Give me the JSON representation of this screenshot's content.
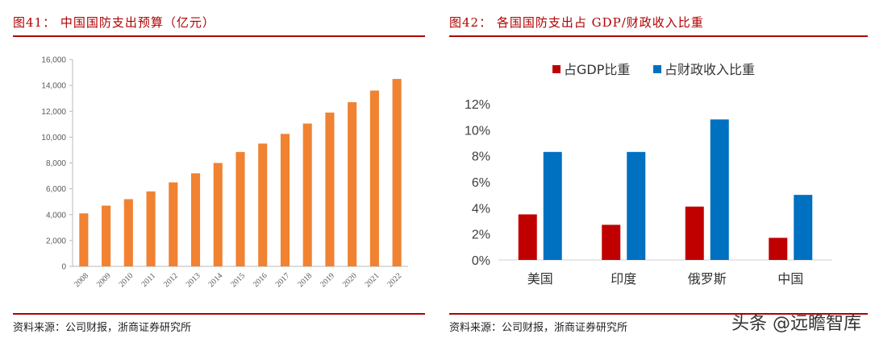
{
  "left_panel": {
    "title": "图41：  中国国防支出预算（亿元）",
    "source": "资料来源：公司财报，浙商证券研究所"
  },
  "right_panel": {
    "title": "图42：  各国国防支出占 GDP/财政收入比重",
    "source": "资料来源：公司财报，浙商证券研究所"
  },
  "watermark": "头条 @远瞻智库",
  "chart_data": [
    {
      "type": "bar",
      "title": "",
      "categories": [
        "2008",
        "2009",
        "2010",
        "2011",
        "2012",
        "2013",
        "2014",
        "2015",
        "2016",
        "2017",
        "2018",
        "2019",
        "2020",
        "2021",
        "2022"
      ],
      "values": [
        4100,
        4700,
        5200,
        5800,
        6500,
        7200,
        8000,
        8850,
        9500,
        10250,
        11050,
        11900,
        12700,
        13600,
        14500
      ],
      "ylim": [
        0,
        16000
      ],
      "yticks": [
        0,
        2000,
        4000,
        6000,
        8000,
        10000,
        12000,
        14000,
        16000
      ],
      "ytick_labels": [
        "0",
        "2,000",
        "4,000",
        "6,000",
        "8,000",
        "10,000",
        "12,000",
        "14,000",
        "16,000"
      ],
      "bar_color": "#f08232",
      "grid": false,
      "legend": "none"
    },
    {
      "type": "bar",
      "title": "",
      "categories": [
        "美国",
        "印度",
        "俄罗斯",
        "中国"
      ],
      "series": [
        {
          "name": "占GDP比重",
          "values": [
            3.5,
            2.7,
            4.1,
            1.7
          ],
          "color": "#c00000"
        },
        {
          "name": "占财政收入比重",
          "values": [
            8.3,
            8.3,
            10.8,
            5.0
          ],
          "color": "#0070c0"
        }
      ],
      "ylim": [
        0,
        12
      ],
      "yticks": [
        0,
        2,
        4,
        6,
        8,
        10,
        12
      ],
      "ytick_labels": [
        "0%",
        "2%",
        "4%",
        "6%",
        "8%",
        "10%",
        "12%"
      ],
      "grid": false,
      "legend": "top"
    }
  ]
}
